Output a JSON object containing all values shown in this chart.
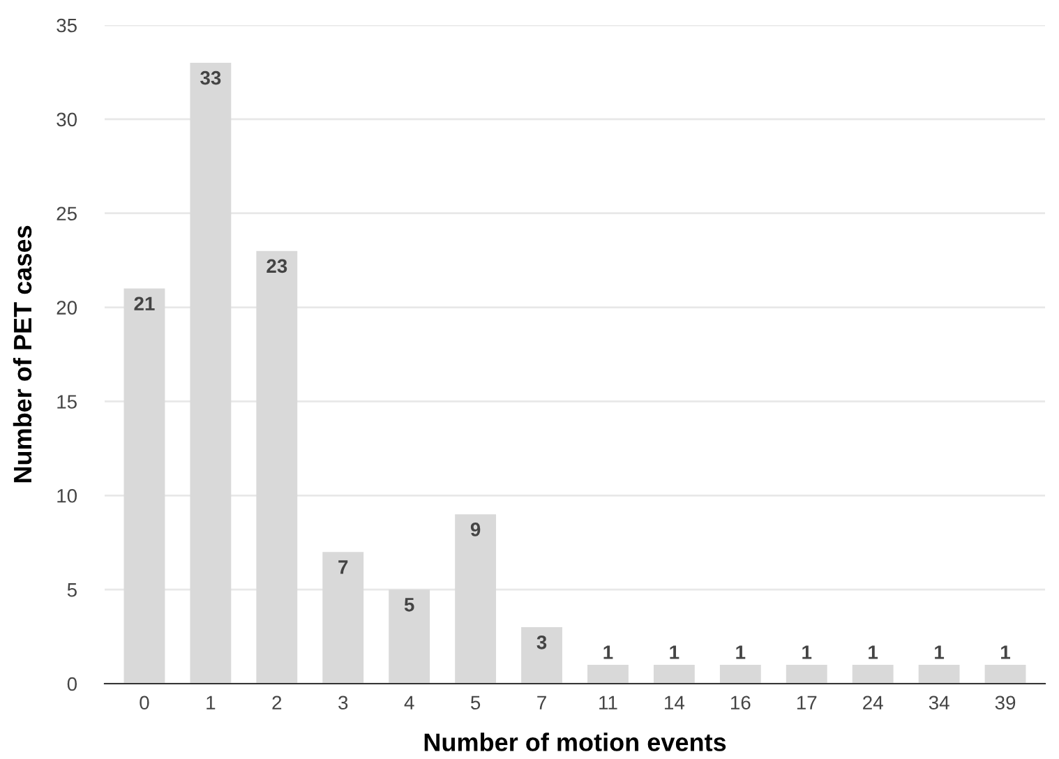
{
  "chart_data": {
    "type": "bar",
    "xlabel": "Number of motion events",
    "ylabel": "Number of PET cases",
    "categories": [
      "0",
      "1",
      "2",
      "3",
      "4",
      "5",
      "7",
      "11",
      "14",
      "16",
      "17",
      "24",
      "34",
      "39"
    ],
    "values": [
      21,
      33,
      23,
      7,
      5,
      9,
      3,
      1,
      1,
      1,
      1,
      1,
      1,
      1
    ],
    "color": "#d9d9d9",
    "ylim": [
      0,
      35
    ],
    "yticks": [
      0,
      5,
      10,
      15,
      20,
      25,
      30,
      35
    ],
    "grid": "y",
    "data_labels": true
  }
}
